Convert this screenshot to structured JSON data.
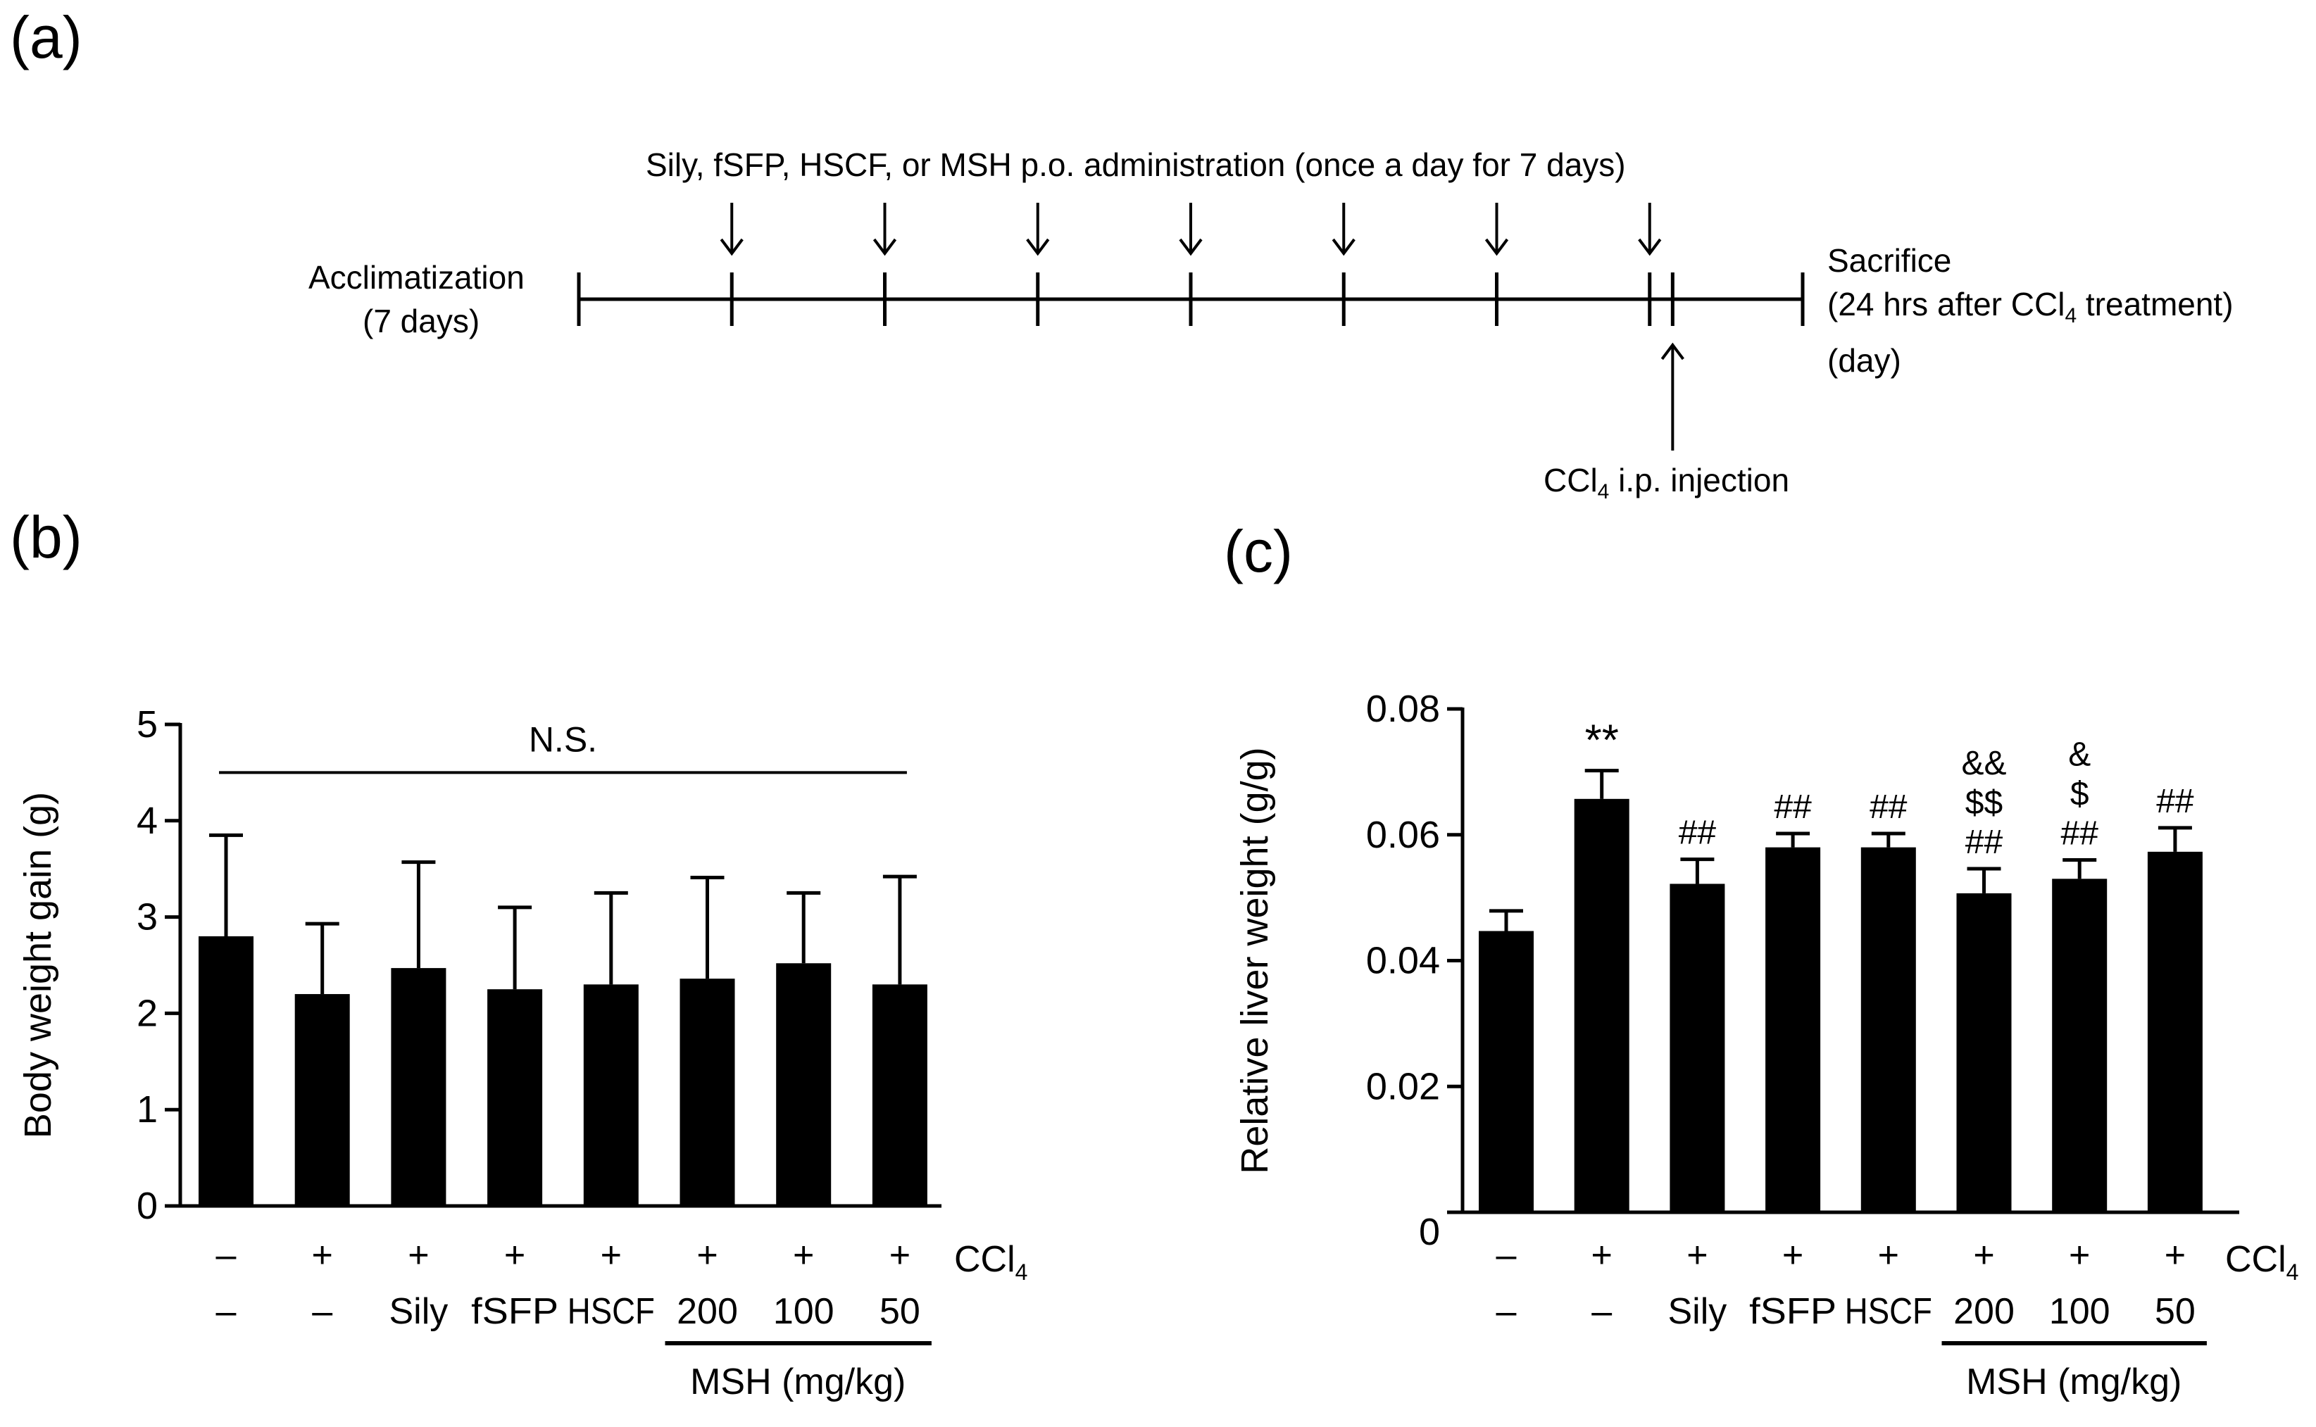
{
  "panel_labels": {
    "a": "(a)",
    "b": "(b)",
    "c": "(c)"
  },
  "timeline": {
    "admin_text": "Sily, fSFP, HSCF, or MSH  p.o. administration (once a day for 7 days)",
    "acclimatization": "Acclimatization",
    "acclimatization_days": "(7 days)",
    "sacrifice": "Sacrifice",
    "sacrifice_detail_pre": "(24 hrs after CCl",
    "sacrifice_detail_sub": "4",
    "sacrifice_detail_post": " treatment)",
    "day_ticks": [
      "0",
      "1",
      "2",
      "3",
      "4",
      "5",
      "6",
      "7",
      "8"
    ],
    "day_unit": "(day)",
    "injection_pre": "CCl",
    "injection_sub": "4",
    "injection_post": " i.p. injection",
    "admin_arrow_days": [
      1,
      2,
      3,
      4,
      5,
      6,
      7
    ],
    "injection_day": 7.15
  },
  "treatment_rows": {
    "ccl4_signs": [
      "–",
      "+",
      "+",
      "+",
      "+",
      "+",
      "+",
      "+"
    ],
    "ccl4_label": "CCl",
    "ccl4_sub": "4",
    "groups": [
      "–",
      "–",
      "Sily",
      "fSFP",
      "HSCF",
      "200",
      "100",
      "50"
    ],
    "msh_label": "MSH (mg/kg)"
  },
  "chart_data": [
    {
      "panel": "(b)",
      "type": "bar",
      "title": "",
      "xlabel": "",
      "ylabel": "Body weight gain (g)",
      "ylim": [
        0,
        5
      ],
      "yticks": [
        "0",
        "1",
        "2",
        "3",
        "4",
        "5"
      ],
      "ytick_values": [
        0,
        1,
        2,
        3,
        4,
        5
      ],
      "categories": [
        "–/–",
        "+/–",
        "+/Sily",
        "+/fSFP",
        "+/HSCF",
        "+/MSH 200",
        "+/MSH 100",
        "+/MSH 50"
      ],
      "values": [
        2.8,
        2.2,
        2.47,
        2.25,
        2.3,
        2.36,
        2.52,
        2.3
      ],
      "errors": [
        1.05,
        0.73,
        1.1,
        0.85,
        0.95,
        1.05,
        0.73,
        1.12
      ],
      "annotation": "N.S.",
      "bar_color": "#000000"
    },
    {
      "panel": "(c)",
      "type": "bar",
      "title": "",
      "xlabel": "",
      "ylabel": "Relative liver weight (g/g)",
      "ylim": [
        0,
        0.08
      ],
      "yticks": [
        "0",
        "0.02",
        "0.04",
        "0.06",
        "0.08"
      ],
      "ytick_values": [
        0,
        0.02,
        0.04,
        0.06,
        0.08
      ],
      "categories": [
        "–/–",
        "+/–",
        "+/Sily",
        "+/fSFP",
        "+/HSCF",
        "+/MSH 200",
        "+/MSH 100",
        "+/MSH 50"
      ],
      "values": [
        0.0447,
        0.0657,
        0.0522,
        0.058,
        0.058,
        0.0507,
        0.053,
        0.0573
      ],
      "errors": [
        0.0032,
        0.0045,
        0.0039,
        0.0022,
        0.0022,
        0.0039,
        0.003,
        0.0038
      ],
      "significance": [
        [],
        [
          "**"
        ],
        [
          "##"
        ],
        [
          "##"
        ],
        [
          "##"
        ],
        [
          "##",
          "$$",
          "&&"
        ],
        [
          "##",
          "$",
          "&"
        ],
        [
          "##"
        ]
      ],
      "bar_color": "#000000"
    }
  ]
}
